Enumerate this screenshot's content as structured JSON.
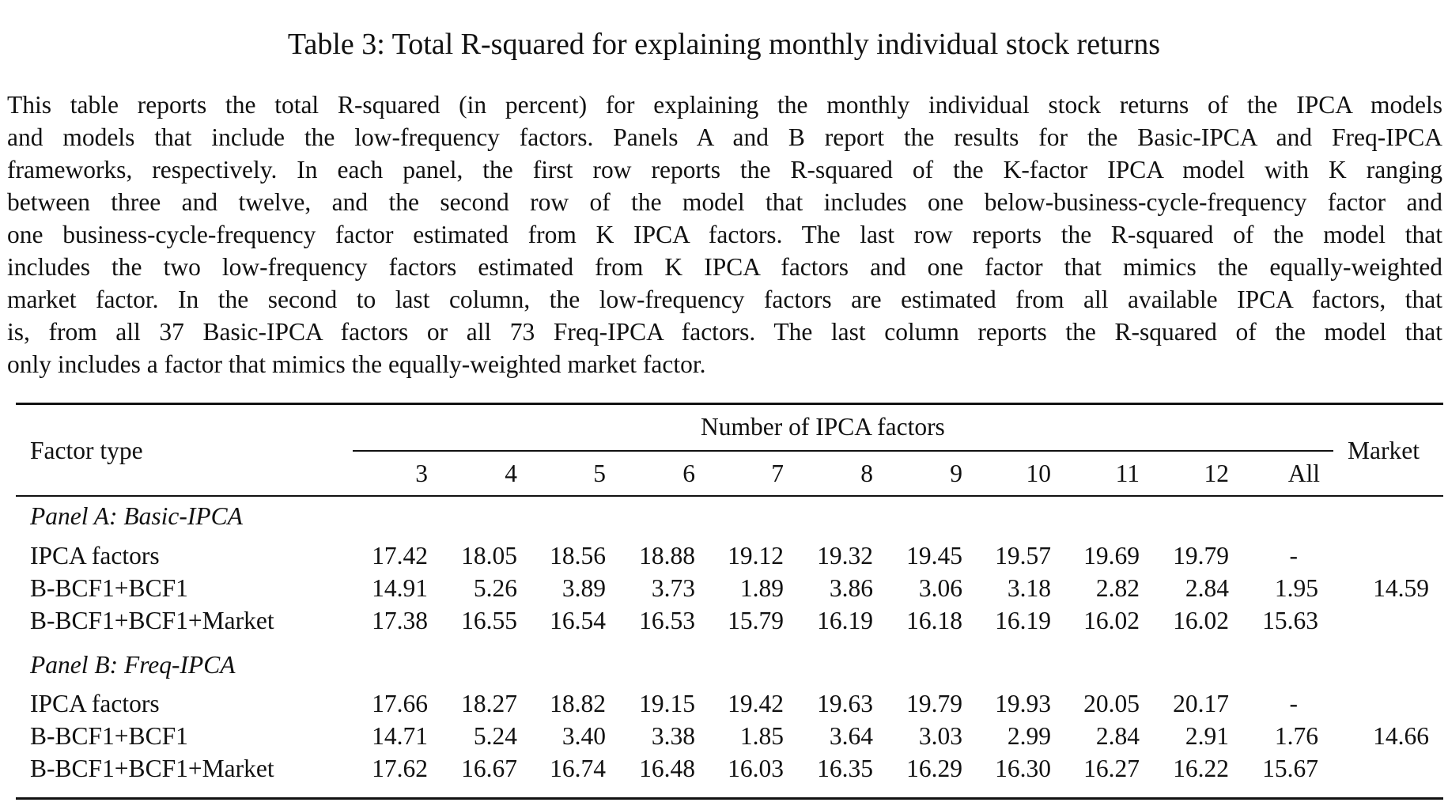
{
  "caption": "Table 3: Total R-squared for explaining monthly individual stock returns",
  "paragraph_lines": [
    "This table reports the total R-squared (in percent) for explaining the monthly individual stock returns of the IPCA models",
    "and models that include the low-frequency factors. Panels A and B report the results for the Basic-IPCA and Freq-IPCA",
    "frameworks, respectively. In each panel, the first row reports the R-squared of the K-factor IPCA model with K ranging",
    "between three and twelve, and the second row of the model that includes one below-business-cycle-frequency factor and",
    "one business-cycle-frequency factor estimated from K IPCA factors. The last row reports the R-squared of the model that",
    "includes the two low-frequency factors estimated from K IPCA factors and one factor that mimics the equally-weighted",
    "market factor. In the second to last column, the low-frequency factors are estimated from all available IPCA factors, that",
    "is, from all 37 Basic-IPCA factors or all 73 Freq-IPCA factors. The last column reports the R-squared of the model that",
    "only includes a factor that mimics the equally-weighted market factor."
  ],
  "table": {
    "factor_type_header": "Factor type",
    "group_header": "Number of IPCA factors",
    "market_header": "Market",
    "columns": [
      "3",
      "4",
      "5",
      "6",
      "7",
      "8",
      "9",
      "10",
      "11",
      "12",
      "All"
    ],
    "panels": [
      {
        "title": "Panel A: Basic-IPCA",
        "rows": [
          {
            "label": "IPCA factors",
            "values": [
              "17.42",
              "18.05",
              "18.56",
              "18.88",
              "19.12",
              "19.32",
              "19.45",
              "19.57",
              "19.69",
              "19.79",
              "-"
            ],
            "market": ""
          },
          {
            "label": "B-BCF1+BCF1",
            "values": [
              "14.91",
              "5.26",
              "3.89",
              "3.73",
              "1.89",
              "3.86",
              "3.06",
              "3.18",
              "2.82",
              "2.84",
              "1.95"
            ],
            "market": "14.59"
          },
          {
            "label": "B-BCF1+BCF1+Market",
            "values": [
              "17.38",
              "16.55",
              "16.54",
              "16.53",
              "15.79",
              "16.19",
              "16.18",
              "16.19",
              "16.02",
              "16.02",
              "15.63"
            ],
            "market": ""
          }
        ]
      },
      {
        "title": "Panel B: Freq-IPCA",
        "rows": [
          {
            "label": "IPCA factors",
            "values": [
              "17.66",
              "18.27",
              "18.82",
              "19.15",
              "19.42",
              "19.63",
              "19.79",
              "19.93",
              "20.05",
              "20.17",
              "-"
            ],
            "market": ""
          },
          {
            "label": "B-BCF1+BCF1",
            "values": [
              "14.71",
              "5.24",
              "3.40",
              "3.38",
              "1.85",
              "3.64",
              "3.03",
              "2.99",
              "2.84",
              "2.91",
              "1.76"
            ],
            "market": "14.66"
          },
          {
            "label": "B-BCF1+BCF1+Market",
            "values": [
              "17.62",
              "16.67",
              "16.74",
              "16.48",
              "16.03",
              "16.35",
              "16.29",
              "16.30",
              "16.27",
              "16.22",
              "15.67"
            ],
            "market": ""
          }
        ]
      }
    ]
  }
}
